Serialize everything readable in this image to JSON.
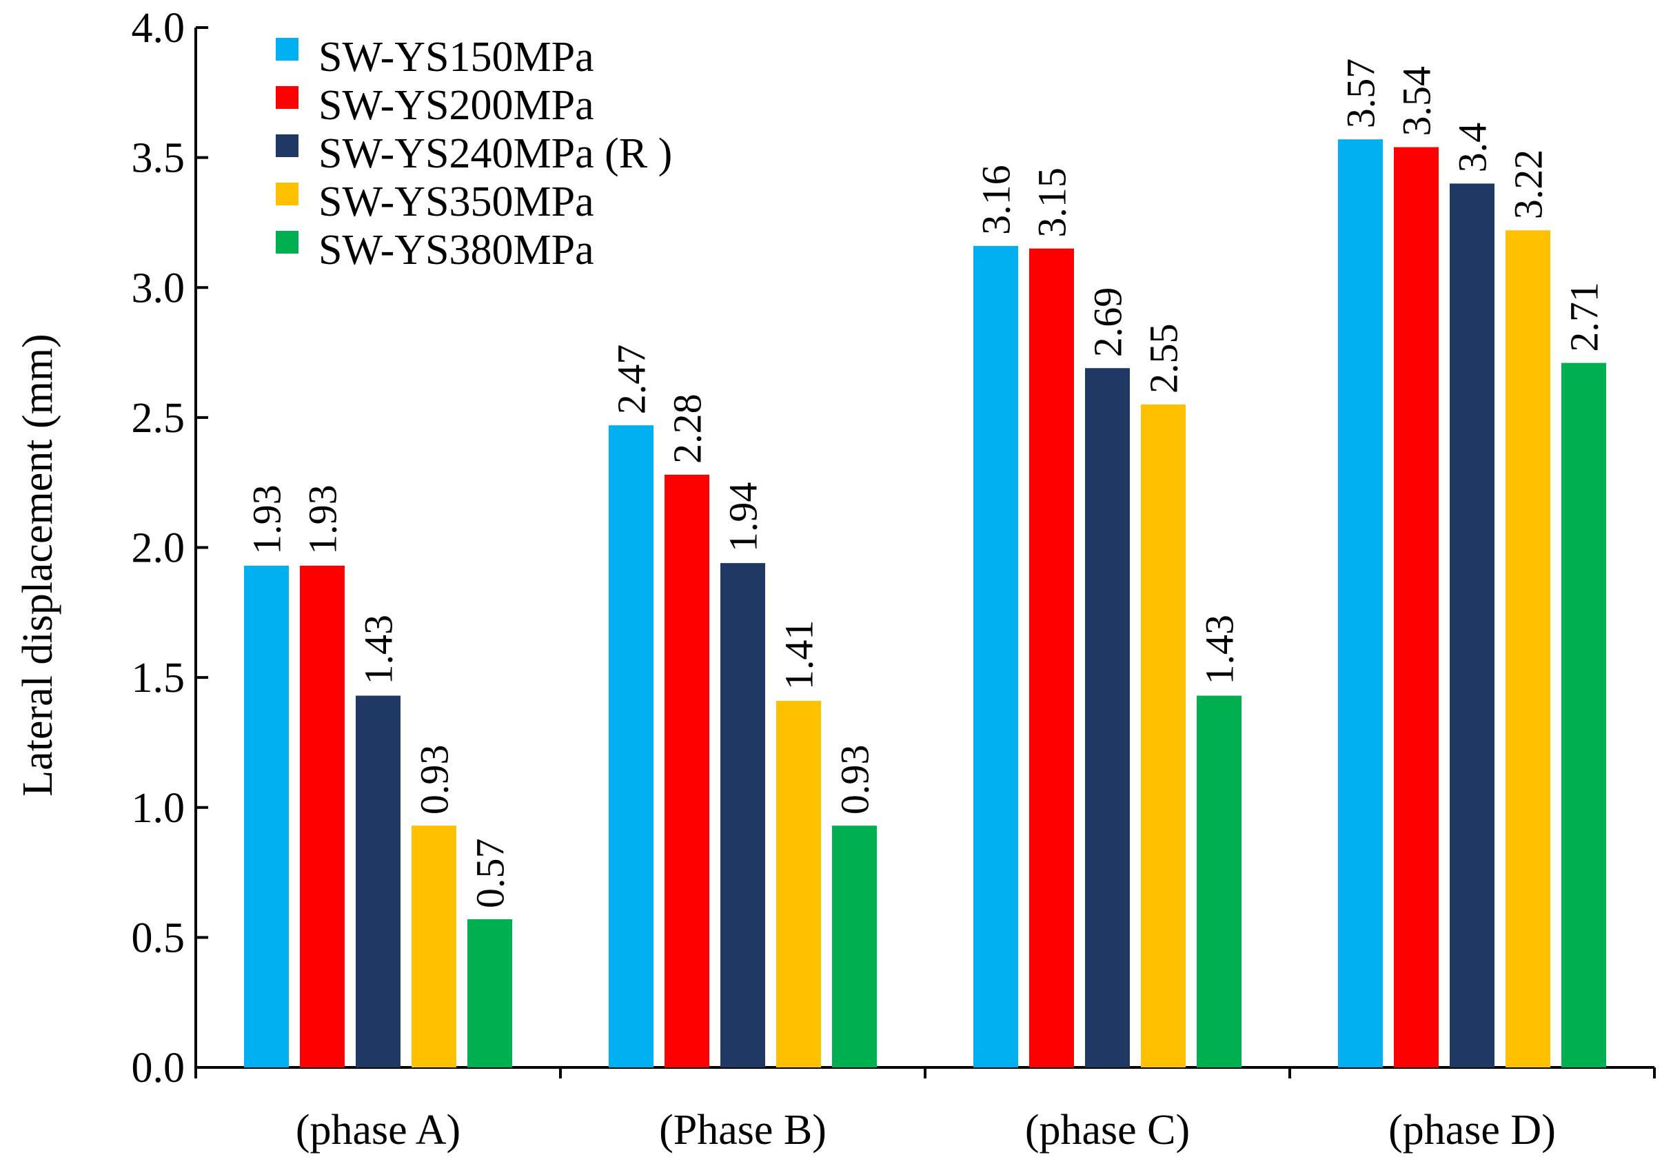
{
  "chart_data": {
    "type": "bar",
    "title": "",
    "xlabel": "",
    "ylabel": "Lateral displacement (mm)",
    "ylim": [
      0,
      4
    ],
    "yticks": [
      "0.0",
      "0.5",
      "1.0",
      "1.5",
      "2.0",
      "2.5",
      "3.0",
      "3.5",
      "4.0"
    ],
    "categories": [
      "(phase A)",
      "(Phase B)",
      "(phase C)",
      "(phase D)"
    ],
    "series": [
      {
        "name": "SW-YS150MPa",
        "color": "#00B0F0",
        "values": [
          1.93,
          2.47,
          3.16,
          3.57
        ],
        "labels": [
          "1.93",
          "2.47",
          "3.16",
          "3.57"
        ]
      },
      {
        "name": "SW-YS200MPa",
        "color": "#FF0000",
        "values": [
          1.93,
          2.28,
          3.15,
          3.54
        ],
        "labels": [
          "1.93",
          "2.28",
          "3.15",
          "3.54"
        ]
      },
      {
        "name": "SW-YS240MPa (R )",
        "color": "#203864",
        "values": [
          1.43,
          1.94,
          2.69,
          3.4
        ],
        "labels": [
          "1.43",
          "1.94",
          "2.69",
          "3.4"
        ]
      },
      {
        "name": "SW-YS350MPa",
        "color": "#FFC000",
        "values": [
          0.93,
          1.41,
          2.55,
          3.22
        ],
        "labels": [
          "0.93",
          "1.41",
          "2.55",
          "3.22"
        ]
      },
      {
        "name": "SW-YS380MPa",
        "color": "#00B050",
        "values": [
          0.57,
          0.93,
          1.43,
          2.71
        ],
        "labels": [
          "0.57",
          "0.93",
          "1.43",
          "2.71"
        ]
      }
    ],
    "grid": false,
    "legend_position": "top-left"
  }
}
